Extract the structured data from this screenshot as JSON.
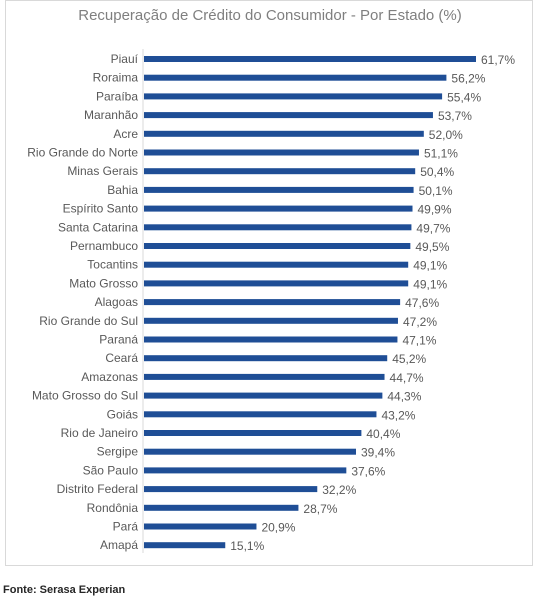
{
  "chart_data": {
    "type": "bar",
    "orientation": "horizontal",
    "title": "Recuperação de Crédito do Consumidor - Por Estado (%)",
    "categories": [
      "Piauí",
      "Roraima",
      "Paraíba",
      "Maranhão",
      "Acre",
      "Rio Grande do Norte",
      "Minas Gerais",
      "Bahia",
      "Espírito Santo",
      "Santa Catarina",
      "Pernambuco",
      "Tocantins",
      "Mato Grosso",
      "Alagoas",
      "Rio Grande do Sul",
      "Paraná",
      "Ceará",
      "Amazonas",
      "Mato Grosso do Sul",
      "Goiás",
      "Rio de Janeiro",
      "Sergipe",
      "São Paulo",
      "Distrito Federal",
      "Rondônia",
      "Pará",
      "Amapá"
    ],
    "values": [
      61.7,
      56.2,
      55.4,
      53.7,
      52.0,
      51.1,
      50.4,
      50.1,
      49.9,
      49.7,
      49.5,
      49.1,
      49.1,
      47.6,
      47.2,
      47.1,
      45.2,
      44.7,
      44.3,
      43.2,
      40.4,
      39.4,
      37.6,
      32.2,
      28.7,
      20.9,
      15.1
    ],
    "value_labels": [
      "61,7%",
      "56,2%",
      "55,4%",
      "53,7%",
      "52,0%",
      "51,1%",
      "50,4%",
      "50,1%",
      "49,9%",
      "49,7%",
      "49,5%",
      "49,1%",
      "49,1%",
      "47,6%",
      "47,2%",
      "47,1%",
      "45,2%",
      "44,7%",
      "44,3%",
      "43,2%",
      "40,4%",
      "39,4%",
      "37,6%",
      "32,2%",
      "28,7%",
      "20,9%",
      "15,1%"
    ],
    "xlim": [
      0,
      61.7
    ],
    "grid": false,
    "bar_color": "#1f4e96"
  },
  "source": "Fonte: Serasa Experian"
}
